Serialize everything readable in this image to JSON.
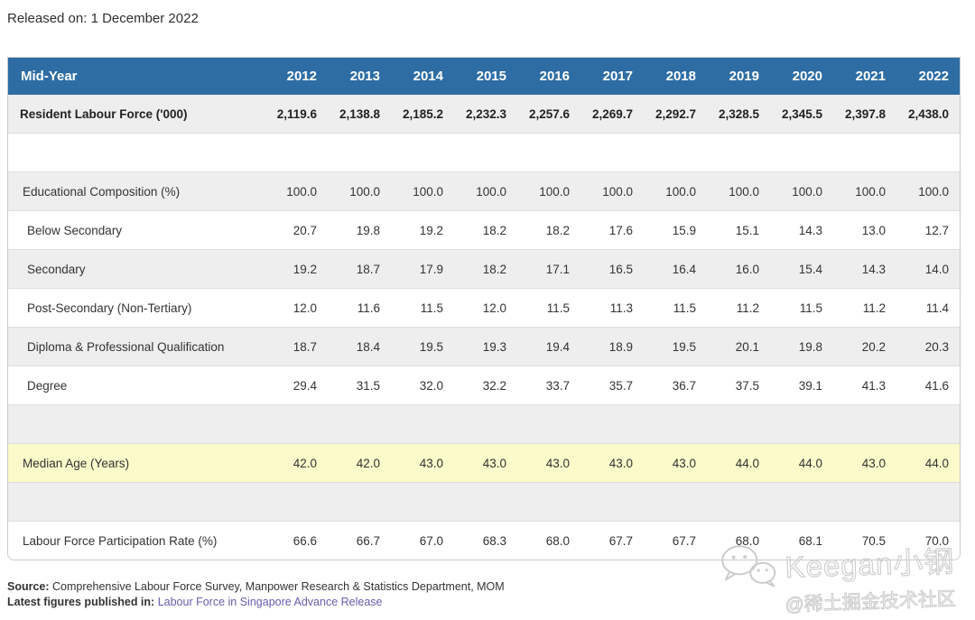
{
  "released_on": "Released on: 1 December 2022",
  "colors": {
    "header_blue": "#2e6da4",
    "stripe_gray": "#eeeeee",
    "highlight_yellow": "#fafaca",
    "link_purple": "#6a5aad",
    "border_gray": "#c9c9c9"
  },
  "table": {
    "header": {
      "label": "Mid-Year",
      "years": [
        "2012",
        "2013",
        "2014",
        "2015",
        "2016",
        "2017",
        "2018",
        "2019",
        "2020",
        "2021",
        "2022"
      ]
    },
    "rows": [
      {
        "type": "data",
        "label": "Resident Labour Force ('000)",
        "bold": true,
        "indent": 0,
        "bg": "gray",
        "values": [
          "2,119.6",
          "2,138.8",
          "2,185.2",
          "2,232.3",
          "2,257.6",
          "2,269.7",
          "2,292.7",
          "2,328.5",
          "2,345.5",
          "2,397.8",
          "2,438.0"
        ]
      },
      {
        "type": "spacer",
        "label": "",
        "bg": "white",
        "values": []
      },
      {
        "type": "data",
        "label": "Educational Composition (%)",
        "bold": false,
        "indent": 1,
        "bg": "gray",
        "values": [
          "100.0",
          "100.0",
          "100.0",
          "100.0",
          "100.0",
          "100.0",
          "100.0",
          "100.0",
          "100.0",
          "100.0",
          "100.0"
        ]
      },
      {
        "type": "data",
        "label": "Below Secondary",
        "bold": false,
        "indent": 2,
        "bg": "white",
        "values": [
          "20.7",
          "19.8",
          "19.2",
          "18.2",
          "18.2",
          "17.6",
          "15.9",
          "15.1",
          "14.3",
          "13.0",
          "12.7"
        ]
      },
      {
        "type": "data",
        "label": "Secondary",
        "bold": false,
        "indent": 2,
        "bg": "gray",
        "values": [
          "19.2",
          "18.7",
          "17.9",
          "18.2",
          "17.1",
          "16.5",
          "16.4",
          "16.0",
          "15.4",
          "14.3",
          "14.0"
        ]
      },
      {
        "type": "data",
        "label": "Post-Secondary (Non-Tertiary)",
        "bold": false,
        "indent": 2,
        "bg": "white",
        "values": [
          "12.0",
          "11.6",
          "11.5",
          "12.0",
          "11.5",
          "11.3",
          "11.5",
          "11.2",
          "11.5",
          "11.2",
          "11.4"
        ]
      },
      {
        "type": "data",
        "label": "Diploma & Professional Qualification",
        "bold": false,
        "indent": 2,
        "bg": "gray",
        "values": [
          "18.7",
          "18.4",
          "19.5",
          "19.3",
          "19.4",
          "18.9",
          "19.5",
          "20.1",
          "19.8",
          "20.2",
          "20.3"
        ]
      },
      {
        "type": "data",
        "label": "Degree",
        "bold": false,
        "indent": 2,
        "bg": "white",
        "values": [
          "29.4",
          "31.5",
          "32.0",
          "32.2",
          "33.7",
          "35.7",
          "36.7",
          "37.5",
          "39.1",
          "41.3",
          "41.6"
        ]
      },
      {
        "type": "spacer",
        "label": "",
        "bg": "gray",
        "values": []
      },
      {
        "type": "data",
        "label": "Median Age (Years)",
        "bold": false,
        "indent": 1,
        "bg": "yellow",
        "values": [
          "42.0",
          "42.0",
          "43.0",
          "43.0",
          "43.0",
          "43.0",
          "43.0",
          "44.0",
          "44.0",
          "43.0",
          "44.0"
        ]
      },
      {
        "type": "spacer",
        "label": "",
        "bg": "gray",
        "values": []
      },
      {
        "type": "data",
        "label": "Labour Force Participation Rate (%)",
        "bold": false,
        "indent": 1,
        "bg": "white",
        "values": [
          "66.6",
          "66.7",
          "67.0",
          "68.3",
          "68.0",
          "67.7",
          "67.7",
          "68.0",
          "68.1",
          "70.5",
          "70.0"
        ]
      }
    ]
  },
  "footer": {
    "source_label": "Source:",
    "source_text": "Comprehensive Labour Force Survey, Manpower Research & Statistics Department, MOM",
    "published_label": "Latest figures published in:",
    "published_link": "Labour Force in Singapore Advance Release"
  },
  "watermark": {
    "icon": "wechat-icon",
    "name": "Keegan小钢",
    "handle": "@稀土掘金技术社区"
  }
}
